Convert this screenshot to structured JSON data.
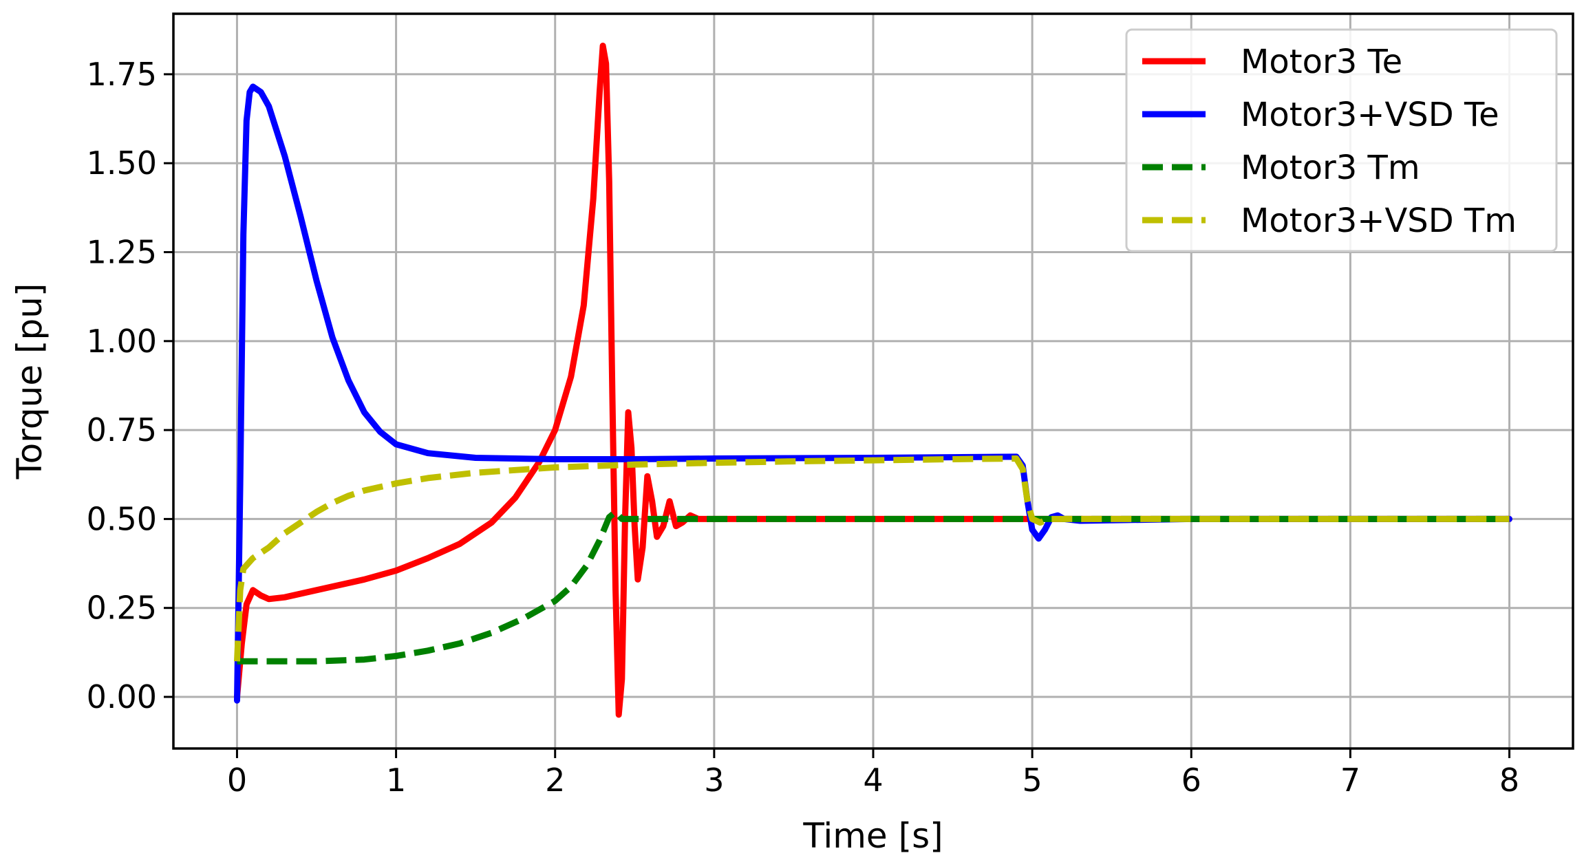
{
  "chart_data": {
    "type": "line",
    "xlabel": "Time [s]",
    "ylabel": "Torque [pu]",
    "xlim": [
      -0.4,
      8.4
    ],
    "ylim": [
      -0.145,
      1.92
    ],
    "xticks": [
      0,
      1,
      2,
      3,
      4,
      5,
      6,
      7,
      8
    ],
    "xtick_labels": [
      "0",
      "1",
      "2",
      "3",
      "4",
      "5",
      "6",
      "7",
      "8"
    ],
    "yticks": [
      0.0,
      0.25,
      0.5,
      0.75,
      1.0,
      1.25,
      1.5,
      1.75
    ],
    "ytick_labels": [
      "0.00",
      "0.25",
      "0.50",
      "0.75",
      "1.00",
      "1.25",
      "1.50",
      "1.75"
    ],
    "grid": true,
    "legend_position": "top-right",
    "series": [
      {
        "name": "Motor3 Te",
        "color": "#ff0000",
        "style": "solid",
        "points": [
          [
            0,
            0.0
          ],
          [
            0.03,
            0.15
          ],
          [
            0.06,
            0.26
          ],
          [
            0.1,
            0.3
          ],
          [
            0.15,
            0.285
          ],
          [
            0.2,
            0.275
          ],
          [
            0.3,
            0.28
          ],
          [
            0.5,
            0.3
          ],
          [
            0.8,
            0.33
          ],
          [
            1.0,
            0.355
          ],
          [
            1.2,
            0.39
          ],
          [
            1.4,
            0.43
          ],
          [
            1.6,
            0.49
          ],
          [
            1.75,
            0.56
          ],
          [
            1.9,
            0.66
          ],
          [
            2.0,
            0.75
          ],
          [
            2.1,
            0.9
          ],
          [
            2.18,
            1.1
          ],
          [
            2.24,
            1.4
          ],
          [
            2.28,
            1.7
          ],
          [
            2.3,
            1.83
          ],
          [
            2.32,
            1.78
          ],
          [
            2.34,
            1.45
          ],
          [
            2.36,
            0.85
          ],
          [
            2.38,
            0.3
          ],
          [
            2.4,
            -0.05
          ],
          [
            2.42,
            0.05
          ],
          [
            2.44,
            0.5
          ],
          [
            2.46,
            0.8
          ],
          [
            2.48,
            0.7
          ],
          [
            2.5,
            0.48
          ],
          [
            2.52,
            0.33
          ],
          [
            2.55,
            0.42
          ],
          [
            2.58,
            0.62
          ],
          [
            2.61,
            0.55
          ],
          [
            2.64,
            0.45
          ],
          [
            2.68,
            0.48
          ],
          [
            2.72,
            0.55
          ],
          [
            2.76,
            0.48
          ],
          [
            2.8,
            0.49
          ],
          [
            2.85,
            0.51
          ],
          [
            2.9,
            0.5
          ],
          [
            3.0,
            0.5
          ],
          [
            5.0,
            0.5
          ],
          [
            8.0,
            0.5
          ]
        ]
      },
      {
        "name": "Motor3+VSD Te",
        "color": "#0000ff",
        "style": "solid",
        "points": [
          [
            0,
            -0.01
          ],
          [
            0.02,
            0.6
          ],
          [
            0.04,
            1.3
          ],
          [
            0.06,
            1.62
          ],
          [
            0.08,
            1.7
          ],
          [
            0.1,
            1.715
          ],
          [
            0.15,
            1.7
          ],
          [
            0.2,
            1.66
          ],
          [
            0.3,
            1.52
          ],
          [
            0.4,
            1.35
          ],
          [
            0.5,
            1.17
          ],
          [
            0.6,
            1.01
          ],
          [
            0.7,
            0.89
          ],
          [
            0.8,
            0.8
          ],
          [
            0.9,
            0.745
          ],
          [
            1.0,
            0.71
          ],
          [
            1.2,
            0.685
          ],
          [
            1.5,
            0.672
          ],
          [
            2.0,
            0.668
          ],
          [
            2.5,
            0.668
          ],
          [
            3.0,
            0.67
          ],
          [
            4.0,
            0.672
          ],
          [
            4.9,
            0.675
          ],
          [
            4.94,
            0.65
          ],
          [
            4.97,
            0.55
          ],
          [
            5.0,
            0.47
          ],
          [
            5.04,
            0.445
          ],
          [
            5.08,
            0.47
          ],
          [
            5.12,
            0.505
          ],
          [
            5.16,
            0.51
          ],
          [
            5.2,
            0.5
          ],
          [
            5.3,
            0.495
          ],
          [
            6.0,
            0.5
          ],
          [
            8.0,
            0.5
          ]
        ]
      },
      {
        "name": "Motor3 Tm",
        "color": "#008000",
        "style": "dashed",
        "points": [
          [
            0,
            0.1
          ],
          [
            0.2,
            0.1
          ],
          [
            0.5,
            0.1
          ],
          [
            0.8,
            0.105
          ],
          [
            1.0,
            0.115
          ],
          [
            1.2,
            0.13
          ],
          [
            1.4,
            0.15
          ],
          [
            1.6,
            0.18
          ],
          [
            1.8,
            0.22
          ],
          [
            2.0,
            0.27
          ],
          [
            2.1,
            0.31
          ],
          [
            2.2,
            0.37
          ],
          [
            2.28,
            0.44
          ],
          [
            2.34,
            0.505
          ],
          [
            2.38,
            0.52
          ],
          [
            2.42,
            0.5
          ],
          [
            2.46,
            0.5
          ],
          [
            2.5,
            0.5
          ],
          [
            3.0,
            0.5
          ],
          [
            8.0,
            0.5
          ]
        ]
      },
      {
        "name": "Motor3+VSD Tm",
        "color": "#bfbf00",
        "style": "dashed",
        "points": [
          [
            0,
            0.1
          ],
          [
            0.02,
            0.3
          ],
          [
            0.04,
            0.36
          ],
          [
            0.1,
            0.39
          ],
          [
            0.2,
            0.42
          ],
          [
            0.3,
            0.46
          ],
          [
            0.4,
            0.49
          ],
          [
            0.5,
            0.52
          ],
          [
            0.6,
            0.545
          ],
          [
            0.7,
            0.565
          ],
          [
            0.8,
            0.58
          ],
          [
            1.0,
            0.6
          ],
          [
            1.2,
            0.615
          ],
          [
            1.5,
            0.63
          ],
          [
            2.0,
            0.645
          ],
          [
            2.5,
            0.653
          ],
          [
            3.0,
            0.658
          ],
          [
            3.5,
            0.662
          ],
          [
            4.0,
            0.665
          ],
          [
            4.5,
            0.668
          ],
          [
            4.9,
            0.67
          ],
          [
            4.94,
            0.64
          ],
          [
            4.97,
            0.55
          ],
          [
            5.0,
            0.5
          ],
          [
            5.05,
            0.49
          ],
          [
            5.1,
            0.5
          ],
          [
            5.2,
            0.5
          ],
          [
            6.0,
            0.5
          ],
          [
            8.0,
            0.5
          ]
        ]
      }
    ]
  }
}
